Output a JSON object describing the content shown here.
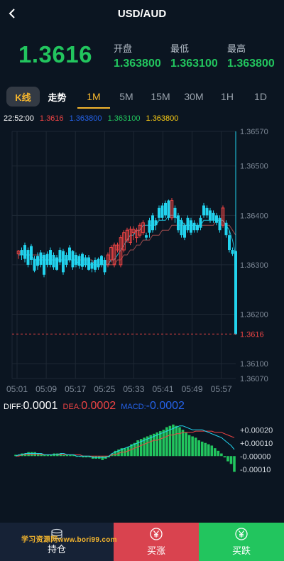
{
  "header": {
    "title": "USD/AUD",
    "back_icon": "chevron-left-icon"
  },
  "price": {
    "current": "1.3616",
    "open_label": "开盘",
    "open": "1.363800",
    "low_label": "最低",
    "low": "1.363100",
    "high_label": "最高",
    "high": "1.363800"
  },
  "tabs": {
    "kline": "K线",
    "trend": "走势",
    "periods": [
      "1M",
      "5M",
      "15M",
      "30M",
      "1H",
      "1D"
    ],
    "active": "1M"
  },
  "ohlc": {
    "time": "22:52:00",
    "close": "1.3616",
    "open": "1.363800",
    "low": "1.363100",
    "high": "1.363800"
  },
  "chart_data": {
    "type": "candlestick",
    "y_ticks": [
      "1.36570",
      "1.36500",
      "1.36400",
      "1.36300",
      "1.36200",
      "1.36100",
      "1.36070"
    ],
    "ylim": [
      1.3607,
      1.3657
    ],
    "x_ticks": [
      "05:01",
      "05:09",
      "05:17",
      "05:25",
      "05:33",
      "05:41",
      "05:49",
      "05:57"
    ],
    "current_price_label": "1.3616",
    "current_price": 1.3616,
    "colors": {
      "up": "#ef4444",
      "down": "#22d3ee",
      "grid": "#1e2835",
      "axis_text": "#7c8795",
      "ma": "#22d3ee",
      "ma2": "#b45353"
    },
    "candles": [
      [
        1.36322,
        1.36328,
        1.36312,
        1.3633
      ],
      [
        1.3633,
        1.3632,
        1.3631,
        1.36335
      ],
      [
        1.3634,
        1.36312,
        1.36305,
        1.36345
      ],
      [
        1.3633,
        1.363,
        1.36295,
        1.36335
      ],
      [
        1.36338,
        1.3631,
        1.363,
        1.36342
      ],
      [
        1.36312,
        1.36288,
        1.36285,
        1.36318
      ],
      [
        1.36318,
        1.36298,
        1.3629,
        1.36325
      ],
      [
        1.36325,
        1.363,
        1.36295,
        1.3633
      ],
      [
        1.3632,
        1.3628,
        1.36275,
        1.36325
      ],
      [
        1.36322,
        1.363,
        1.36295,
        1.36327
      ],
      [
        1.3633,
        1.363,
        1.36295,
        1.36335
      ],
      [
        1.3632,
        1.36295,
        1.3629,
        1.36325
      ],
      [
        1.36315,
        1.3629,
        1.36288,
        1.3632
      ],
      [
        1.3633,
        1.36305,
        1.363,
        1.36335
      ],
      [
        1.36328,
        1.36285,
        1.3628,
        1.36332
      ],
      [
        1.3632,
        1.363,
        1.36295,
        1.36325
      ],
      [
        1.36335,
        1.3631,
        1.36305,
        1.3634
      ],
      [
        1.36328,
        1.36295,
        1.3629,
        1.3633
      ],
      [
        1.3632,
        1.363,
        1.36295,
        1.36325
      ],
      [
        1.36318,
        1.36298,
        1.36292,
        1.36322
      ],
      [
        1.36322,
        1.36296,
        1.3629,
        1.36325
      ],
      [
        1.36315,
        1.363,
        1.36295,
        1.3632
      ],
      [
        1.36315,
        1.3629,
        1.36288,
        1.3632
      ],
      [
        1.36305,
        1.36292,
        1.36285,
        1.3631
      ],
      [
        1.3631,
        1.3629,
        1.36285,
        1.36315
      ],
      [
        1.36312,
        1.36295,
        1.3629,
        1.36315
      ],
      [
        1.36318,
        1.363,
        1.36295,
        1.3632
      ],
      [
        1.3631,
        1.36285,
        1.3628,
        1.36315
      ],
      [
        1.363,
        1.3632,
        1.36295,
        1.36325
      ],
      [
        1.3631,
        1.36335,
        1.36305,
        1.3634
      ],
      [
        1.363,
        1.3634,
        1.36295,
        1.36345
      ],
      [
        1.3633,
        1.3634,
        1.36325,
        1.36345
      ],
      [
        1.363,
        1.36355,
        1.36295,
        1.3636
      ],
      [
        1.3633,
        1.36365,
        1.36325,
        1.3637
      ],
      [
        1.3635,
        1.3637,
        1.36345,
        1.36375
      ],
      [
        1.36345,
        1.36372,
        1.3634,
        1.36378
      ],
      [
        1.36365,
        1.36372,
        1.3635,
        1.36378
      ],
      [
        1.36355,
        1.3637,
        1.36345,
        1.36375
      ],
      [
        1.3636,
        1.3638,
        1.36355,
        1.36385
      ],
      [
        1.36365,
        1.36385,
        1.3636,
        1.3639
      ],
      [
        1.3636,
        1.36355,
        1.3635,
        1.36365
      ],
      [
        1.3639,
        1.36365,
        1.36355,
        1.36395
      ],
      [
        1.364,
        1.3637,
        1.36365,
        1.36405
      ],
      [
        1.3639,
        1.3638,
        1.3637,
        1.36395
      ],
      [
        1.36415,
        1.36395,
        1.3639,
        1.3642
      ],
      [
        1.3642,
        1.36395,
        1.3639,
        1.36425
      ],
      [
        1.36425,
        1.364,
        1.36395,
        1.3643
      ],
      [
        1.3643,
        1.36395,
        1.3639,
        1.36432
      ],
      [
        1.36395,
        1.3643,
        1.3639,
        1.36435
      ],
      [
        1.36415,
        1.36395,
        1.36385,
        1.3642
      ],
      [
        1.364,
        1.3637,
        1.36365,
        1.36405
      ],
      [
        1.3639,
        1.3636,
        1.36355,
        1.36395
      ],
      [
        1.3638,
        1.36355,
        1.3635,
        1.36385
      ],
      [
        1.36395,
        1.3637,
        1.36365,
        1.364
      ],
      [
        1.3639,
        1.36365,
        1.3636,
        1.36395
      ],
      [
        1.36385,
        1.3637,
        1.36365,
        1.3639
      ],
      [
        1.3638,
        1.3637,
        1.36365,
        1.36385
      ],
      [
        1.36395,
        1.36375,
        1.3637,
        1.364
      ],
      [
        1.3642,
        1.364,
        1.36395,
        1.36425
      ],
      [
        1.36415,
        1.364,
        1.36395,
        1.3642
      ],
      [
        1.3641,
        1.3639,
        1.36385,
        1.36415
      ],
      [
        1.36405,
        1.3639,
        1.36385,
        1.3641
      ],
      [
        1.364,
        1.36385,
        1.3638,
        1.36405
      ],
      [
        1.36395,
        1.3637,
        1.36365,
        1.364
      ],
      [
        1.3638,
        1.36415,
        1.36375,
        1.3642
      ],
      [
        1.36385,
        1.3636,
        1.36355,
        1.3639
      ],
      [
        1.3636,
        1.3633,
        1.36325,
        1.3637
      ],
      [
        1.3633,
        1.36322,
        1.36318,
        1.36335
      ],
      [
        1.36328,
        1.3616,
        1.36158,
        1.3657
      ]
    ],
    "ma": [
      1.3632,
      1.3632,
      1.3632,
      1.3632,
      1.3632,
      1.3631,
      1.3631,
      1.3631,
      1.3631,
      1.3631,
      1.3631,
      1.3631,
      1.3631,
      1.3631,
      1.3631,
      1.3631,
      1.3631,
      1.3631,
      1.3631,
      1.363,
      1.363,
      1.363,
      1.363,
      1.363,
      1.363,
      1.363,
      1.363,
      1.363,
      1.363,
      1.3631,
      1.3631,
      1.3632,
      1.3633,
      1.3634,
      1.3635,
      1.3636,
      1.3636,
      1.3637,
      1.3637,
      1.3638,
      1.3638,
      1.3638,
      1.3638,
      1.3638,
      1.3639,
      1.3639,
      1.3639,
      1.364,
      1.364,
      1.364,
      1.3639,
      1.3639,
      1.3638,
      1.3638,
      1.3638,
      1.3638,
      1.3638,
      1.3638,
      1.3639,
      1.3639,
      1.3639,
      1.3639,
      1.3639,
      1.3639,
      1.3639,
      1.3638,
      1.3637,
      1.3635,
      1.3632
    ],
    "ma2": [
      1.3632,
      1.3632,
      1.3632,
      1.3632,
      1.3632,
      1.3632,
      1.3632,
      1.3632,
      1.3631,
      1.3631,
      1.3631,
      1.3631,
      1.3631,
      1.3631,
      1.3631,
      1.3631,
      1.3631,
      1.3631,
      1.3631,
      1.3631,
      1.3631,
      1.3631,
      1.3631,
      1.3631,
      1.363,
      1.363,
      1.363,
      1.363,
      1.363,
      1.363,
      1.363,
      1.3631,
      1.3631,
      1.3632,
      1.3632,
      1.3633,
      1.3633,
      1.3634,
      1.3634,
      1.3635,
      1.3635,
      1.3635,
      1.3636,
      1.3636,
      1.3636,
      1.3637,
      1.3637,
      1.3637,
      1.3638,
      1.3638,
      1.3638,
      1.3638,
      1.3638,
      1.3638,
      1.3638,
      1.3638,
      1.3638,
      1.3638,
      1.3638,
      1.3638,
      1.3638,
      1.3638,
      1.3639,
      1.3639,
      1.3639,
      1.3638,
      1.3638,
      1.3637,
      1.3636
    ]
  },
  "macd": {
    "diff_label": "DIFF:",
    "diff": "0.0001",
    "dea_label": "DEA:",
    "dea": "0.0002",
    "macd_label": "MACD:",
    "macd": "-0.0002",
    "y_ticks": [
      "+0.00020",
      "+0.00010",
      "-0.00000",
      "-0.00010"
    ],
    "ylim": [
      -0.00015,
      0.00025
    ],
    "bars": [
      1e-05,
      1e-05,
      2e-05,
      2e-05,
      3e-05,
      3e-05,
      3e-05,
      2e-05,
      2e-05,
      1e-05,
      1e-05,
      1e-05,
      2e-05,
      2e-05,
      2e-05,
      1e-05,
      1e-05,
      1e-05,
      1e-05,
      0.0,
      0.0,
      -1e-05,
      -1e-05,
      -1e-05,
      -2e-05,
      -2e-05,
      -2e-05,
      -3e-05,
      -2e-05,
      -1e-05,
      2e-05,
      4e-05,
      5e-05,
      6e-05,
      6e-05,
      7e-05,
      9e-05,
      0.0001,
      0.00012,
      0.00013,
      0.00014,
      0.00015,
      0.00016,
      0.00017,
      0.00018,
      0.00019,
      0.0002,
      0.00022,
      0.00023,
      0.00024,
      0.00023,
      0.00022,
      0.0002,
      0.00018,
      0.00016,
      0.00015,
      0.00014,
      0.00012,
      0.00011,
      0.0001,
      9e-05,
      8e-05,
      6e-05,
      4e-05,
      2e-05,
      -1e-05,
      -4e-05,
      -6e-05,
      -0.00012
    ],
    "diff_line": [
      0.0,
      1e-05,
      1e-05,
      2e-05,
      2e-05,
      2e-05,
      2e-05,
      2e-05,
      2e-05,
      1e-05,
      1e-05,
      1e-05,
      1e-05,
      1e-05,
      2e-05,
      2e-05,
      1e-05,
      1e-05,
      1e-05,
      0.0,
      0.0,
      0.0,
      0.0,
      0.0,
      -1e-05,
      -1e-05,
      -1e-05,
      -1e-05,
      -1e-05,
      0.0,
      2e-05,
      3e-05,
      4e-05,
      5e-05,
      6e-05,
      7e-05,
      8e-05,
      9e-05,
      0.0001,
      0.00011,
      0.00012,
      0.00013,
      0.00014,
      0.00015,
      0.00016,
      0.00017,
      0.00018,
      0.00019,
      0.0002,
      0.00021,
      0.00022,
      0.00023,
      0.00023,
      0.00022,
      0.00021,
      0.0002,
      0.0002,
      0.0002,
      0.0002,
      0.00019,
      0.00018,
      0.00017,
      0.00016,
      0.00015,
      0.00014,
      0.00012,
      0.0001,
      8e-05,
      5e-05
    ],
    "dea_line": [
      0.0,
      0.0,
      1e-05,
      1e-05,
      1e-05,
      1e-05,
      1e-05,
      1e-05,
      1e-05,
      1e-05,
      1e-05,
      1e-05,
      1e-05,
      1e-05,
      1e-05,
      1e-05,
      1e-05,
      1e-05,
      1e-05,
      1e-05,
      1e-05,
      0.0,
      0.0,
      0.0,
      0.0,
      0.0,
      0.0,
      0.0,
      0.0,
      0.0,
      1e-05,
      1e-05,
      2e-05,
      3e-05,
      3e-05,
      4e-05,
      5e-05,
      6e-05,
      7e-05,
      8e-05,
      9e-05,
      0.0001,
      0.00011,
      0.00012,
      0.00012,
      0.00013,
      0.00014,
      0.00015,
      0.00016,
      0.00016,
      0.00017,
      0.00017,
      0.00018,
      0.00018,
      0.00018,
      0.00018,
      0.00019,
      0.00019,
      0.00019,
      0.00019,
      0.00019,
      0.00019,
      0.00018,
      0.00018,
      0.00018,
      0.00017,
      0.00016,
      0.00015,
      0.00014
    ],
    "colors": {
      "pos": "#22c55e",
      "neg": "#22c55e",
      "diff": "#22d3ee",
      "dea": "#ef4444",
      "axis_text": "#d7dde3"
    }
  },
  "bottom_bar": {
    "positions": "持仓",
    "buy_up": "买涨",
    "buy_down": "买跌",
    "positions_icon": "stack-icon",
    "buy_up_icon": "yen-coin-icon",
    "buy_down_icon": "yen-coin-icon",
    "watermark": "学习资源网www.bori99.com"
  }
}
